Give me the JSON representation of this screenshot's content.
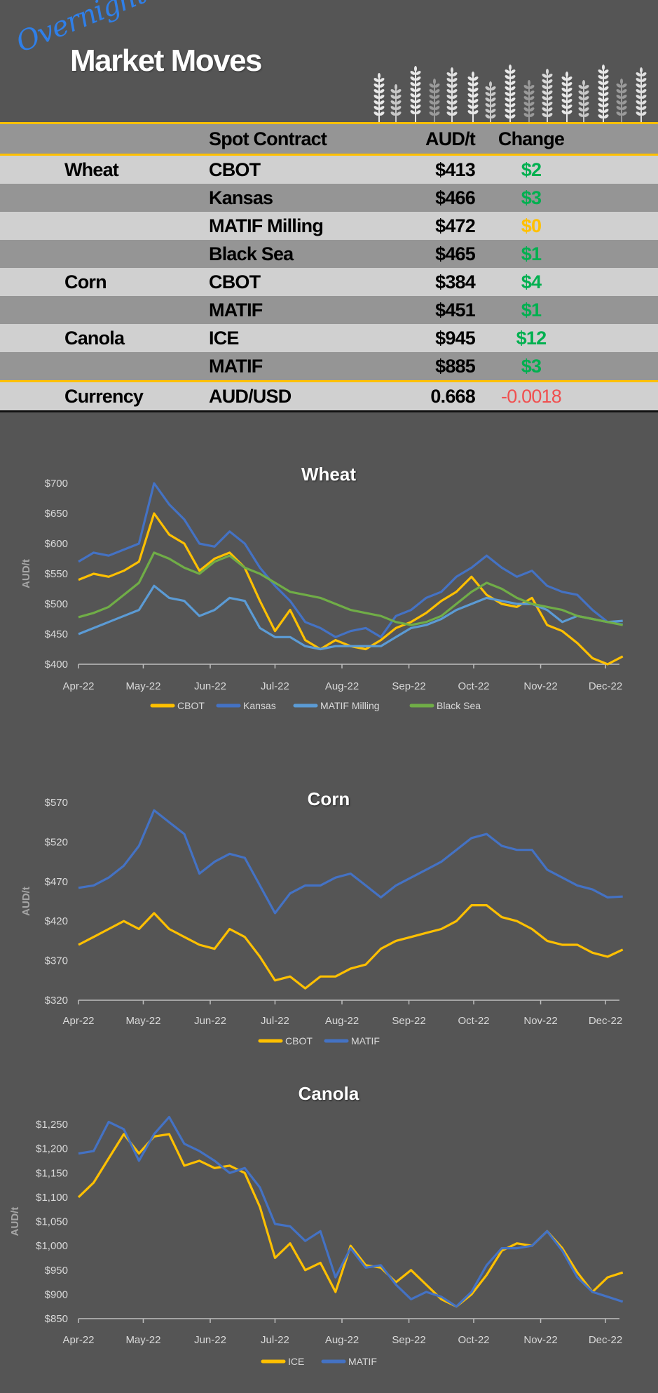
{
  "header": {
    "script_word": "Overnight",
    "title": "Market Moves",
    "decoration": "wheat-stalks-icon"
  },
  "table": {
    "columns": [
      "",
      "Spot Contract",
      "AUD/t",
      "Change"
    ],
    "rows": [
      {
        "commodity": "Wheat",
        "contract": "CBOT",
        "price": "$413",
        "change": "$2",
        "direction": "up"
      },
      {
        "commodity": "",
        "contract": "Kansas",
        "price": "$466",
        "change": "$3",
        "direction": "up"
      },
      {
        "commodity": "",
        "contract": "MATIF Milling",
        "price": "$472",
        "change": "$0",
        "direction": "flat"
      },
      {
        "commodity": "",
        "contract": "Black Sea",
        "price": "$465",
        "change": "$1",
        "direction": "up"
      },
      {
        "commodity": "Corn",
        "contract": "CBOT",
        "price": "$384",
        "change": "$4",
        "direction": "up"
      },
      {
        "commodity": "",
        "contract": "MATIF",
        "price": "$451",
        "change": "$1",
        "direction": "up"
      },
      {
        "commodity": "Canola",
        "contract": "ICE",
        "price": "$945",
        "change": "$12",
        "direction": "up"
      },
      {
        "commodity": "",
        "contract": "MATIF",
        "price": "$885",
        "change": "$3",
        "direction": "up"
      },
      {
        "commodity": "Currency",
        "contract": "AUD/USD",
        "price": "0.668",
        "change": "-0.0018",
        "direction": "down"
      }
    ],
    "colors": {
      "up": "#00b050",
      "flat": "#ffc000",
      "down": "#f05050",
      "accent": "#ffc000"
    }
  },
  "chart_data": [
    {
      "type": "line",
      "title": "Wheat",
      "ylabel": "AUD/t",
      "xlabel": "",
      "ylim": [
        400,
        700
      ],
      "y_ticks": [
        "$400",
        "$450",
        "$500",
        "$550",
        "$600",
        "$650",
        "$700"
      ],
      "x_ticks": [
        "Apr-22",
        "May-22",
        "Jun-22",
        "Jul-22",
        "Aug-22",
        "Sep-22",
        "Oct-22",
        "Nov-22",
        "Dec-22"
      ],
      "legend": "bottom",
      "grid": false,
      "x": [
        "2022-04-01",
        "2022-04-08",
        "2022-04-15",
        "2022-04-22",
        "2022-04-29",
        "2022-05-06",
        "2022-05-13",
        "2022-05-20",
        "2022-05-27",
        "2022-06-03",
        "2022-06-10",
        "2022-06-17",
        "2022-06-24",
        "2022-07-01",
        "2022-07-08",
        "2022-07-15",
        "2022-07-22",
        "2022-07-29",
        "2022-08-05",
        "2022-08-12",
        "2022-08-19",
        "2022-08-26",
        "2022-09-02",
        "2022-09-09",
        "2022-09-16",
        "2022-09-23",
        "2022-09-30",
        "2022-10-07",
        "2022-10-14",
        "2022-10-21",
        "2022-10-28",
        "2022-11-04",
        "2022-11-11",
        "2022-11-18",
        "2022-11-25",
        "2022-12-02",
        "2022-12-09"
      ],
      "series": [
        {
          "name": "CBOT",
          "color": "#ffc000",
          "values": [
            540,
            550,
            545,
            555,
            570,
            650,
            615,
            600,
            555,
            575,
            585,
            560,
            505,
            455,
            490,
            440,
            425,
            440,
            430,
            425,
            440,
            460,
            470,
            485,
            505,
            520,
            545,
            515,
            500,
            495,
            510,
            465,
            455,
            435,
            410,
            400,
            413
          ]
        },
        {
          "name": "Kansas",
          "color": "#4472c4",
          "values": [
            570,
            585,
            580,
            590,
            600,
            700,
            665,
            640,
            600,
            595,
            620,
            600,
            560,
            530,
            505,
            470,
            460,
            445,
            455,
            460,
            445,
            480,
            490,
            510,
            520,
            545,
            560,
            580,
            560,
            545,
            555,
            530,
            520,
            515,
            490,
            470,
            466
          ]
        },
        {
          "name": "MATIF Milling",
          "color": "#5b9bd5",
          "values": [
            450,
            460,
            470,
            480,
            490,
            530,
            510,
            505,
            480,
            490,
            510,
            505,
            460,
            445,
            445,
            430,
            425,
            430,
            430,
            430,
            430,
            445,
            460,
            465,
            475,
            490,
            500,
            510,
            505,
            500,
            500,
            490,
            470,
            480,
            475,
            470,
            472
          ]
        },
        {
          "name": "Black Sea",
          "color": "#70ad47",
          "values": [
            478,
            485,
            495,
            515,
            535,
            585,
            575,
            560,
            550,
            570,
            580,
            560,
            550,
            535,
            520,
            515,
            510,
            500,
            490,
            485,
            480,
            470,
            465,
            470,
            480,
            500,
            520,
            535,
            525,
            510,
            500,
            495,
            490,
            480,
            475,
            470,
            465
          ]
        }
      ]
    },
    {
      "type": "line",
      "title": "Corn",
      "ylabel": "AUD/t",
      "xlabel": "",
      "ylim": [
        320,
        570
      ],
      "y_ticks": [
        "$320",
        "$370",
        "$420",
        "$470",
        "$520",
        "$570"
      ],
      "x_ticks": [
        "Apr-22",
        "May-22",
        "Jun-22",
        "Jul-22",
        "Aug-22",
        "Sep-22",
        "Oct-22",
        "Nov-22",
        "Dec-22"
      ],
      "legend": "bottom",
      "grid": false,
      "x": [
        "2022-04-01",
        "2022-04-08",
        "2022-04-15",
        "2022-04-22",
        "2022-04-29",
        "2022-05-06",
        "2022-05-13",
        "2022-05-20",
        "2022-05-27",
        "2022-06-03",
        "2022-06-10",
        "2022-06-17",
        "2022-06-24",
        "2022-07-01",
        "2022-07-08",
        "2022-07-15",
        "2022-07-22",
        "2022-07-29",
        "2022-08-05",
        "2022-08-12",
        "2022-08-19",
        "2022-08-26",
        "2022-09-02",
        "2022-09-09",
        "2022-09-16",
        "2022-09-23",
        "2022-09-30",
        "2022-10-07",
        "2022-10-14",
        "2022-10-21",
        "2022-10-28",
        "2022-11-04",
        "2022-11-11",
        "2022-11-18",
        "2022-11-25",
        "2022-12-02",
        "2022-12-09"
      ],
      "series": [
        {
          "name": "CBOT",
          "color": "#ffc000",
          "values": [
            390,
            400,
            410,
            420,
            410,
            430,
            410,
            400,
            390,
            385,
            410,
            400,
            375,
            345,
            350,
            335,
            350,
            350,
            360,
            365,
            385,
            395,
            400,
            405,
            410,
            420,
            440,
            440,
            425,
            420,
            410,
            395,
            390,
            390,
            380,
            375,
            384
          ]
        },
        {
          "name": "MATIF",
          "color": "#4472c4",
          "values": [
            462,
            465,
            475,
            490,
            515,
            560,
            545,
            530,
            480,
            495,
            505,
            500,
            465,
            430,
            455,
            465,
            465,
            475,
            480,
            465,
            450,
            465,
            475,
            485,
            495,
            510,
            525,
            530,
            515,
            510,
            510,
            485,
            475,
            465,
            460,
            450,
            451
          ]
        }
      ]
    },
    {
      "type": "line",
      "title": "Canola",
      "ylabel": "AUD/t",
      "xlabel": "",
      "ylim": [
        850,
        1250
      ],
      "y_ticks": [
        "$850",
        "$900",
        "$950",
        "$1,000",
        "$1,050",
        "$1,100",
        "$1,150",
        "$1,200",
        "$1,250"
      ],
      "x_ticks": [
        "Apr-22",
        "May-22",
        "Jun-22",
        "Jul-22",
        "Aug-22",
        "Sep-22",
        "Oct-22",
        "Nov-22",
        "Dec-22"
      ],
      "legend": "bottom",
      "grid": false,
      "x": [
        "2022-04-01",
        "2022-04-08",
        "2022-04-15",
        "2022-04-22",
        "2022-04-29",
        "2022-05-06",
        "2022-05-13",
        "2022-05-20",
        "2022-05-27",
        "2022-06-03",
        "2022-06-10",
        "2022-06-17",
        "2022-06-24",
        "2022-07-01",
        "2022-07-08",
        "2022-07-15",
        "2022-07-22",
        "2022-07-29",
        "2022-08-05",
        "2022-08-12",
        "2022-08-19",
        "2022-08-26",
        "2022-09-02",
        "2022-09-09",
        "2022-09-16",
        "2022-09-23",
        "2022-09-30",
        "2022-10-07",
        "2022-10-14",
        "2022-10-21",
        "2022-10-28",
        "2022-11-04",
        "2022-11-11",
        "2022-11-18",
        "2022-11-25",
        "2022-12-02",
        "2022-12-09"
      ],
      "series": [
        {
          "name": "ICE",
          "color": "#ffc000",
          "values": [
            1100,
            1130,
            1180,
            1230,
            1190,
            1225,
            1230,
            1165,
            1175,
            1160,
            1165,
            1150,
            1080,
            975,
            1005,
            950,
            965,
            905,
            1000,
            960,
            955,
            925,
            950,
            920,
            890,
            875,
            900,
            940,
            990,
            1005,
            1000,
            1030,
            995,
            945,
            905,
            935,
            945
          ]
        },
        {
          "name": "MATIF",
          "color": "#4472c4",
          "values": [
            1190,
            1195,
            1255,
            1240,
            1175,
            1230,
            1265,
            1210,
            1195,
            1175,
            1150,
            1160,
            1120,
            1045,
            1040,
            1010,
            1030,
            935,
            995,
            955,
            960,
            920,
            890,
            905,
            895,
            875,
            905,
            960,
            995,
            995,
            1000,
            1030,
            990,
            935,
            905,
            895,
            885
          ]
        }
      ]
    }
  ]
}
